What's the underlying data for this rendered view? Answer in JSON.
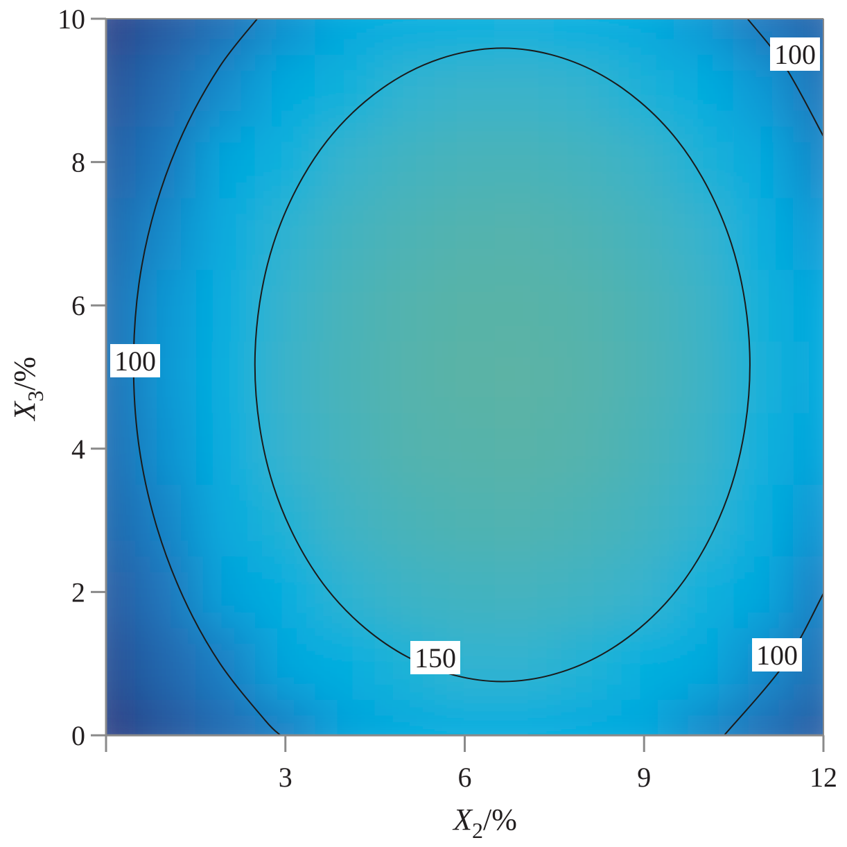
{
  "chart_data": {
    "type": "contour",
    "xlabel": {
      "symbol": "X",
      "subscript": "2",
      "unit": "/%"
    },
    "ylabel": {
      "symbol": "X",
      "subscript": "3",
      "unit": "/%"
    },
    "xlim": [
      0,
      12
    ],
    "ylim": [
      0,
      10
    ],
    "xticks": [
      3,
      6,
      9,
      12
    ],
    "yticks": [
      0,
      2,
      4,
      6,
      8,
      10
    ],
    "x": [
      0,
      1,
      2,
      3,
      4,
      5,
      6,
      7,
      8,
      9,
      10,
      11,
      12
    ],
    "y": [
      0,
      1,
      2,
      3,
      4,
      5,
      6,
      7,
      8,
      9,
      10
    ],
    "z": [
      [
        27,
        57,
        82,
        102,
        118,
        128,
        134,
        134,
        130,
        121,
        107,
        88,
        64
      ],
      [
        47,
        77,
        102,
        122,
        138,
        148,
        154,
        154,
        150,
        141,
        127,
        108,
        84
      ],
      [
        63,
        93,
        118,
        138,
        153,
        164,
        169,
        170,
        166,
        157,
        143,
        124,
        100
      ],
      [
        74,
        104,
        129,
        150,
        165,
        175,
        181,
        182,
        177,
        168,
        154,
        135,
        111
      ],
      [
        81,
        111,
        137,
        157,
        172,
        183,
        188,
        189,
        185,
        175,
        161,
        142,
        118
      ],
      [
        84,
        114,
        139,
        160,
        175,
        185,
        191,
        192,
        187,
        178,
        164,
        145,
        121
      ],
      [
        83,
        113,
        138,
        158,
        174,
        184,
        190,
        190,
        186,
        177,
        163,
        144,
        120
      ],
      [
        77,
        107,
        132,
        153,
        168,
        178,
        184,
        185,
        180,
        171,
        157,
        138,
        114
      ],
      [
        67,
        97,
        122,
        143,
        158,
        168,
        174,
        175,
        170,
        161,
        147,
        128,
        104
      ],
      [
        53,
        83,
        108,
        128,
        144,
        154,
        160,
        160,
        156,
        147,
        133,
        114,
        90
      ],
      [
        34,
        64,
        89,
        110,
        125,
        135,
        141,
        142,
        137,
        128,
        114,
        95,
        71
      ]
    ],
    "colorscale": [
      [
        25,
        "#2b3a80"
      ],
      [
        100,
        "#1f7cc2"
      ],
      [
        120,
        "#03a6dd"
      ],
      [
        140,
        "#02b0e0"
      ],
      [
        155,
        "#35b3cf"
      ],
      [
        192,
        "#5bb3a5"
      ]
    ],
    "contours": [
      {
        "level": 150,
        "x": [
          10.77,
          10.46,
          9.56,
          8.21,
          6.63,
          5.05,
          3.7,
          2.8,
          2.49,
          2.8,
          3.7,
          5.05,
          6.63,
          8.21,
          9.56,
          10.46,
          10.77
        ],
        "y": [
          5.17,
          6.86,
          8.3,
          9.25,
          9.59,
          9.25,
          8.3,
          6.86,
          5.17,
          3.48,
          2.04,
          1.09,
          0.75,
          1.09,
          2.04,
          3.48,
          5.17
        ]
      },
      {
        "level": 100,
        "x": [
          2.53,
          1.9,
          1.29,
          0.83,
          0.55,
          0.46,
          0.55,
          0.83,
          1.29,
          1.9,
          2.66,
          2.92,
          null,
          10.73,
          11.36,
          12,
          null,
          12,
          11.36,
          10.34
        ],
        "y": [
          10,
          9.33,
          8.41,
          7.38,
          6.3,
          5.17,
          4.04,
          2.96,
          1.93,
          1.01,
          0.21,
          0,
          null,
          10,
          9.33,
          8.36,
          null,
          1.98,
          1.01,
          0
        ]
      }
    ],
    "grid": false
  }
}
